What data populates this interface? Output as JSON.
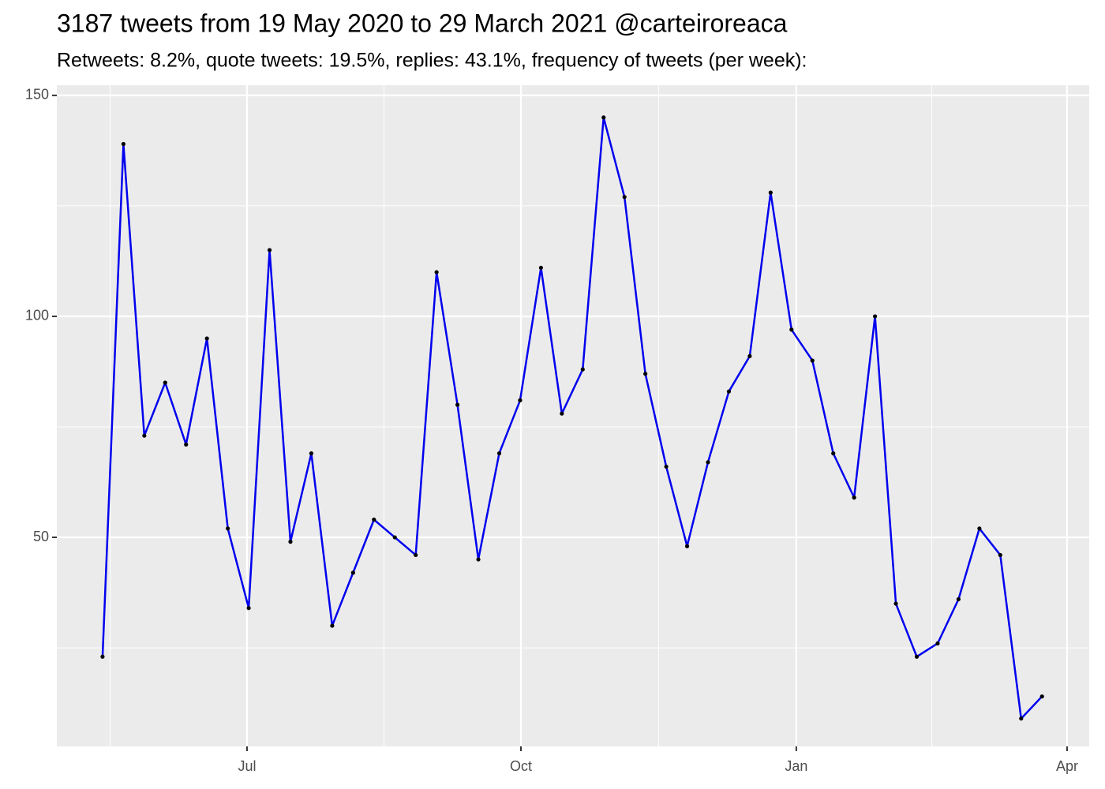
{
  "chart_data": {
    "type": "line",
    "title": "3187 tweets from 19 May 2020 to 29 March 2021 @carteiroreaca",
    "subtitle": "Retweets: 8.2%, quote tweets: 19.5%, replies: 43.1%, frequency of tweets (per week):",
    "x": [
      0,
      1,
      2,
      3,
      4,
      5,
      6,
      7,
      8,
      9,
      10,
      11,
      12,
      13,
      14,
      15,
      16,
      17,
      18,
      19,
      20,
      21,
      22,
      23,
      24,
      25,
      26,
      27,
      28,
      29,
      30,
      31,
      32,
      33,
      34,
      35,
      36,
      37,
      38,
      39,
      40,
      41,
      42,
      43,
      44,
      45
    ],
    "values": [
      23,
      139,
      73,
      85,
      71,
      95,
      52,
      34,
      115,
      49,
      69,
      30,
      42,
      54,
      50,
      46,
      110,
      80,
      45,
      69,
      81,
      111,
      78,
      88,
      145,
      127,
      87,
      66,
      48,
      67,
      83,
      91,
      128,
      97,
      90,
      69,
      59,
      100,
      35,
      23,
      26,
      36,
      52,
      46,
      9,
      14
    ],
    "color": "#0000ee",
    "point_color": "#000000",
    "xlim": [
      -2.19,
      47.26
    ],
    "xticks": [
      {
        "value": 6.92,
        "label": "Jul"
      },
      {
        "value": 20.04,
        "label": "Oct"
      },
      {
        "value": 33.23,
        "label": "Jan"
      },
      {
        "value": 46.2,
        "label": "Apr"
      }
    ],
    "ylim": [
      2.7,
      152.3
    ],
    "yticks": [
      50,
      100,
      150
    ],
    "grid": true
  }
}
